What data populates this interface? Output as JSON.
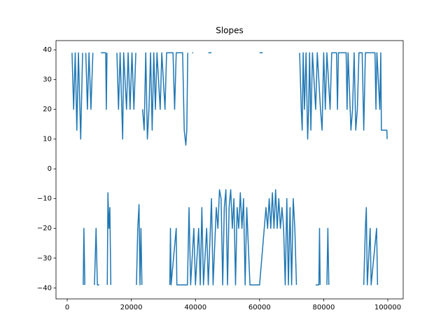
{
  "chart_data": {
    "type": "line",
    "title": "Slopes",
    "x": [
      1500,
      2000,
      2500,
      3000,
      3500,
      4200,
      4800,
      null,
      5000,
      5200,
      5500,
      null,
      5800,
      6300,
      6800,
      7400,
      8000,
      null,
      8500,
      9000,
      9400,
      10000,
      null,
      10500,
      12000,
      12200,
      12400,
      null,
      12500,
      12700,
      13000,
      13300,
      13600,
      null,
      15500,
      16000,
      16500,
      17300,
      17600,
      18500,
      19000,
      19600,
      20200,
      20800,
      21400,
      null,
      21600,
      22000,
      22400,
      22700,
      23000,
      23300,
      null,
      23500,
      24000,
      24500,
      25000,
      25500,
      26000,
      26500,
      27000,
      27500,
      28000,
      29000,
      29500,
      30500,
      31000,
      33000,
      33500,
      34000,
      36000,
      36500,
      37000,
      37300,
      37600,
      null,
      39000,
      39300,
      null,
      44000,
      45000,
      null,
      32000,
      32200,
      32400,
      34000,
      34200,
      37500,
      38000,
      38500,
      39500,
      40000,
      41000,
      41500,
      42000,
      42500,
      43500,
      44000,
      45000,
      45500,
      46500,
      47000,
      47500,
      48000,
      48500,
      49000,
      49500,
      50000,
      50500,
      51000,
      51500,
      52000,
      52500,
      53000,
      53500,
      54000,
      54500,
      55000,
      55500,
      56000,
      57000,
      60000,
      62000,
      62500,
      63000,
      63500,
      64000,
      64500,
      65000,
      65500,
      66000,
      66500,
      67000,
      67500,
      68000,
      68500,
      69000,
      69500,
      70000,
      70500,
      71000,
      71500,
      null,
      60000,
      61000,
      null,
      72500,
      73000,
      73300,
      73600,
      74000,
      74500,
      75000,
      75300,
      75600,
      76000,
      76500,
      77500,
      78000,
      79000,
      79500,
      80000,
      80500,
      81000,
      82000,
      82500,
      84000,
      84300,
      84600,
      87000,
      87300,
      87600,
      88500,
      89000,
      89500,
      90000,
      90500,
      91000,
      92000,
      92500,
      93000,
      96000,
      96300,
      96600,
      97500,
      97800,
      98000,
      99700,
      99800,
      null,
      77500,
      78500,
      78700,
      78900,
      null,
      81000,
      81300,
      81600,
      null,
      92500,
      93000,
      93300,
      93600,
      94500,
      94800,
      96500,
      96800
    ],
    "series": [
      {
        "color": "#1f77b4",
        "values": [
          39,
          20,
          39,
          13,
          39,
          10,
          39,
          null,
          -39,
          -20,
          -39,
          null,
          39,
          20,
          39,
          20,
          39,
          null,
          -39,
          -20,
          -39,
          -39,
          null,
          39,
          39,
          20,
          39,
          null,
          -39,
          -8,
          -20,
          -13,
          -39,
          null,
          39,
          20,
          39,
          10,
          39,
          20,
          39,
          20,
          39,
          20,
          39,
          null,
          -39,
          -20,
          -12,
          -39,
          -20,
          -39,
          null,
          20,
          13,
          39,
          10,
          20,
          39,
          13,
          39,
          20,
          39,
          20,
          39,
          20,
          39,
          39,
          20,
          39,
          39,
          13,
          8,
          13,
          39,
          null,
          39,
          39,
          null,
          39,
          39,
          null,
          -39,
          -20,
          -39,
          -20,
          -39,
          -39,
          -13,
          -39,
          -20,
          -39,
          -20,
          -39,
          -13,
          -39,
          -20,
          -39,
          -10,
          -39,
          -13,
          -20,
          -7,
          -10,
          -39,
          -13,
          -7,
          -39,
          -13,
          -7,
          -20,
          -10,
          -39,
          -13,
          -20,
          -8,
          -20,
          -10,
          -39,
          -13,
          -39,
          -39,
          -13,
          -20,
          -10,
          -20,
          -8,
          -20,
          -7,
          -20,
          -10,
          -20,
          -13,
          -20,
          -39,
          -10,
          -39,
          -13,
          -39,
          -10,
          -20,
          -39,
          null,
          39,
          39,
          null,
          39,
          20,
          13,
          39,
          20,
          39,
          10,
          20,
          39,
          13,
          39,
          20,
          39,
          20,
          13,
          39,
          20,
          39,
          20,
          39,
          39,
          20,
          39,
          39,
          20,
          39,
          13,
          20,
          39,
          13,
          20,
          39,
          39,
          13,
          39,
          39,
          20,
          39,
          20,
          39,
          13,
          13,
          10,
          null,
          -39,
          -39,
          -20,
          -39,
          null,
          -39,
          -20,
          -39,
          null,
          -39,
          -20,
          -13,
          -39,
          -20,
          -39,
          -20,
          -39
        ]
      }
    ],
    "xlim": [
      -3500,
      104800
    ],
    "ylim": [
      -43.7,
      43.1
    ],
    "xticks": [
      0,
      20000,
      40000,
      60000,
      80000,
      100000
    ],
    "yticks": [
      {
        "value": -40,
        "label": "−40"
      },
      {
        "value": -30,
        "label": "−30"
      },
      {
        "value": -20,
        "label": "−20"
      },
      {
        "value": -10,
        "label": "−10"
      },
      0,
      10,
      20,
      30,
      40
    ]
  }
}
